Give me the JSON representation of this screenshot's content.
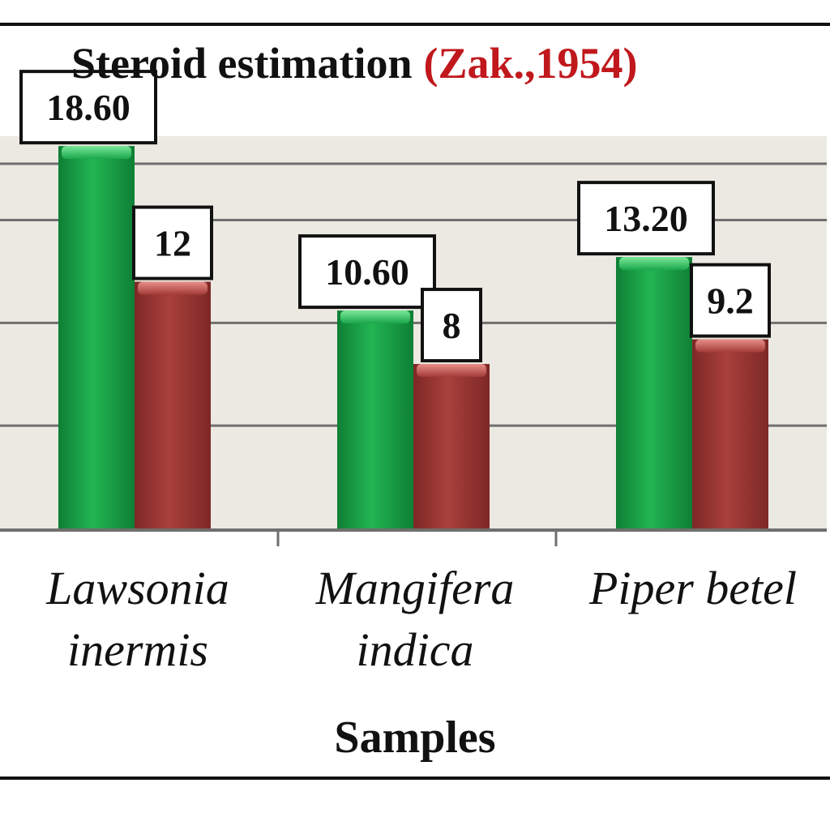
{
  "chart_data": {
    "type": "bar",
    "title": "Steroid estimation",
    "title_citation": "(Zak.,1954)",
    "xlabel": "Samples",
    "ylabel": "",
    "categories": [
      [
        "Lawsonia",
        "inermis"
      ],
      [
        "Mangifera",
        "indica"
      ],
      [
        "Piper betel"
      ]
    ],
    "series": [
      {
        "values": [
          18.6,
          10.6,
          13.2
        ],
        "labels": [
          "18.60",
          "10.60",
          "13.20"
        ],
        "color": "#1aa64a"
      },
      {
        "values": [
          12,
          8,
          9.2
        ],
        "labels": [
          "12",
          "8",
          "9.2"
        ],
        "color": "#a33a37"
      }
    ],
    "ylim": [
      0,
      19
    ],
    "gridlines": [
      5,
      10,
      15
    ],
    "grid": true,
    "legend": "none",
    "colors": {
      "title": "#111111",
      "citation": "#c0181c",
      "plot_background": "#ece9e2",
      "gridline": "#6f6f6f"
    }
  }
}
